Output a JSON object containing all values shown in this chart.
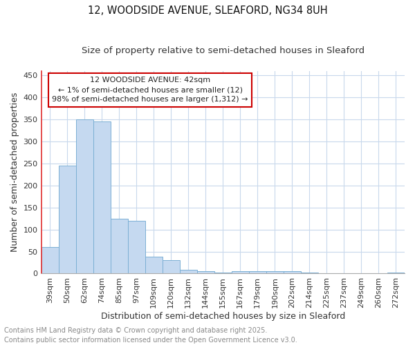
{
  "title_line1": "12, WOODSIDE AVENUE, SLEAFORD, NG34 8UH",
  "title_line2": "Size of property relative to semi-detached houses in Sleaford",
  "xlabel": "Distribution of semi-detached houses by size in Sleaford",
  "ylabel": "Number of semi-detached properties",
  "categories": [
    "39sqm",
    "50sqm",
    "62sqm",
    "74sqm",
    "85sqm",
    "97sqm",
    "109sqm",
    "120sqm",
    "132sqm",
    "144sqm",
    "155sqm",
    "167sqm",
    "179sqm",
    "190sqm",
    "202sqm",
    "214sqm",
    "225sqm",
    "237sqm",
    "249sqm",
    "260sqm",
    "272sqm"
  ],
  "values": [
    60,
    245,
    350,
    345,
    125,
    120,
    38,
    30,
    8,
    6,
    3,
    5,
    6,
    6,
    5,
    3,
    1,
    1,
    1,
    1,
    3
  ],
  "bar_color": "#c5d9f0",
  "bar_edge_color": "#7bafd4",
  "annotation_line1": "12 WOODSIDE AVENUE: 42sqm",
  "annotation_line2": "← 1% of semi-detached houses are smaller (12)",
  "annotation_line3": "98% of semi-detached houses are larger (1,312) →",
  "ylim": [
    0,
    460
  ],
  "yticks": [
    0,
    50,
    100,
    150,
    200,
    250,
    300,
    350,
    400,
    450
  ],
  "footnote_line1": "Contains HM Land Registry data © Crown copyright and database right 2025.",
  "footnote_line2": "Contains public sector information licensed under the Open Government Licence v3.0.",
  "background_color": "#ffffff",
  "grid_color": "#c8d8ec",
  "title_fontsize": 10.5,
  "subtitle_fontsize": 9.5,
  "axis_label_fontsize": 9,
  "tick_fontsize": 8,
  "annotation_fontsize": 8,
  "footnote_fontsize": 7,
  "left_spine_color": "#e03030"
}
